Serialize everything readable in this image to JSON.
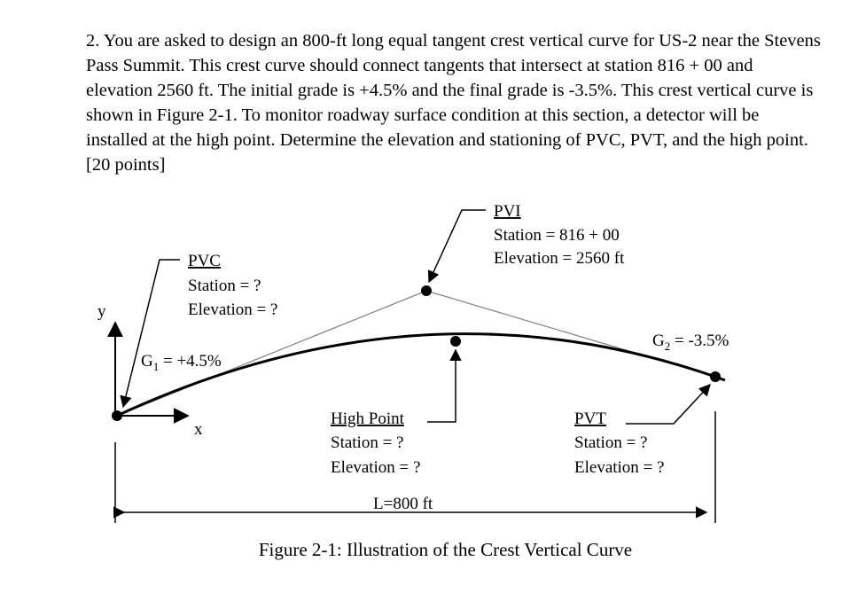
{
  "problem": {
    "text": "2. You are asked to design an 800-ft long equal tangent crest vertical curve for US-2 near the Stevens Pass Summit. This crest curve should connect tangents that intersect at station 816 + 00 and elevation 2560 ft. The initial grade is +4.5% and the final grade is -3.5%. This crest vertical curve is shown in Figure 2-1. To monitor roadway surface condition at this section, a detector will be installed at the high point. Determine the elevation and stationing of PVC, PVT, and the high point. [20 points]"
  },
  "figure": {
    "caption": "Figure 2-1: Illustration of the Crest Vertical Curve",
    "axes": {
      "y": "y",
      "x": "x"
    },
    "pvc": {
      "title": "PVC",
      "station": "Station = ?",
      "elevation": "Elevation = ?"
    },
    "pvi": {
      "title": "PVI",
      "station": "Station = 816 + 00",
      "elevation": "Elevation = 2560 ft"
    },
    "high_point": {
      "title": "High Point",
      "station": "Station = ?",
      "elevation": "Elevation = ?"
    },
    "pvt": {
      "title": "PVT",
      "station": "Station = ?",
      "elevation": "Elevation = ?"
    },
    "g1": {
      "letter": "G",
      "sub": "1",
      "rest": " = +4.5%"
    },
    "g2": {
      "letter": "G",
      "sub": "2",
      "rest": " = -3.5%"
    },
    "length": "L=800 ft"
  }
}
